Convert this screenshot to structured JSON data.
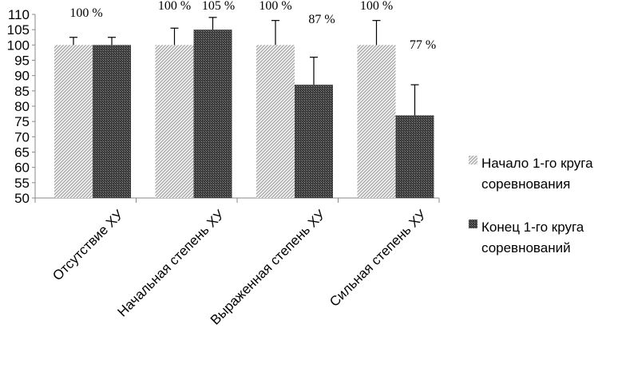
{
  "chart_data": {
    "type": "bar",
    "categories": [
      "Отсутствие ХУ",
      "Начальная степень ХУ",
      "Выраженная степень ХУ",
      "Сильная степень ХУ"
    ],
    "series": [
      {
        "name": "Начало 1-го круга соревнования",
        "legend_lines": [
          "Начало 1-го круга",
          "соревнования"
        ],
        "values": [
          100,
          100,
          100,
          100
        ],
        "errors": [
          2.5,
          5.5,
          8,
          8
        ],
        "labels": [
          "100 %",
          "100 %",
          "100 %",
          "100 %"
        ],
        "pattern": "light-hatch",
        "color": "#d9d9d9"
      },
      {
        "name": "Конец 1-го круга соревнований",
        "legend_lines": [
          "Конец 1-го круга",
          "соревнований"
        ],
        "values": [
          100,
          105,
          87,
          77
        ],
        "errors": [
          2.5,
          4,
          9,
          10
        ],
        "labels": [
          "",
          "105 %",
          "87 %",
          "77 %"
        ],
        "pattern": "dark-crosshatch",
        "color": "#404040"
      }
    ],
    "ylim": [
      50,
      110
    ],
    "yticks": [
      50,
      55,
      60,
      65,
      70,
      75,
      80,
      85,
      90,
      95,
      100,
      105,
      110
    ],
    "title": "",
    "xlabel": "",
    "ylabel": "",
    "grid": false,
    "legend": "right"
  }
}
